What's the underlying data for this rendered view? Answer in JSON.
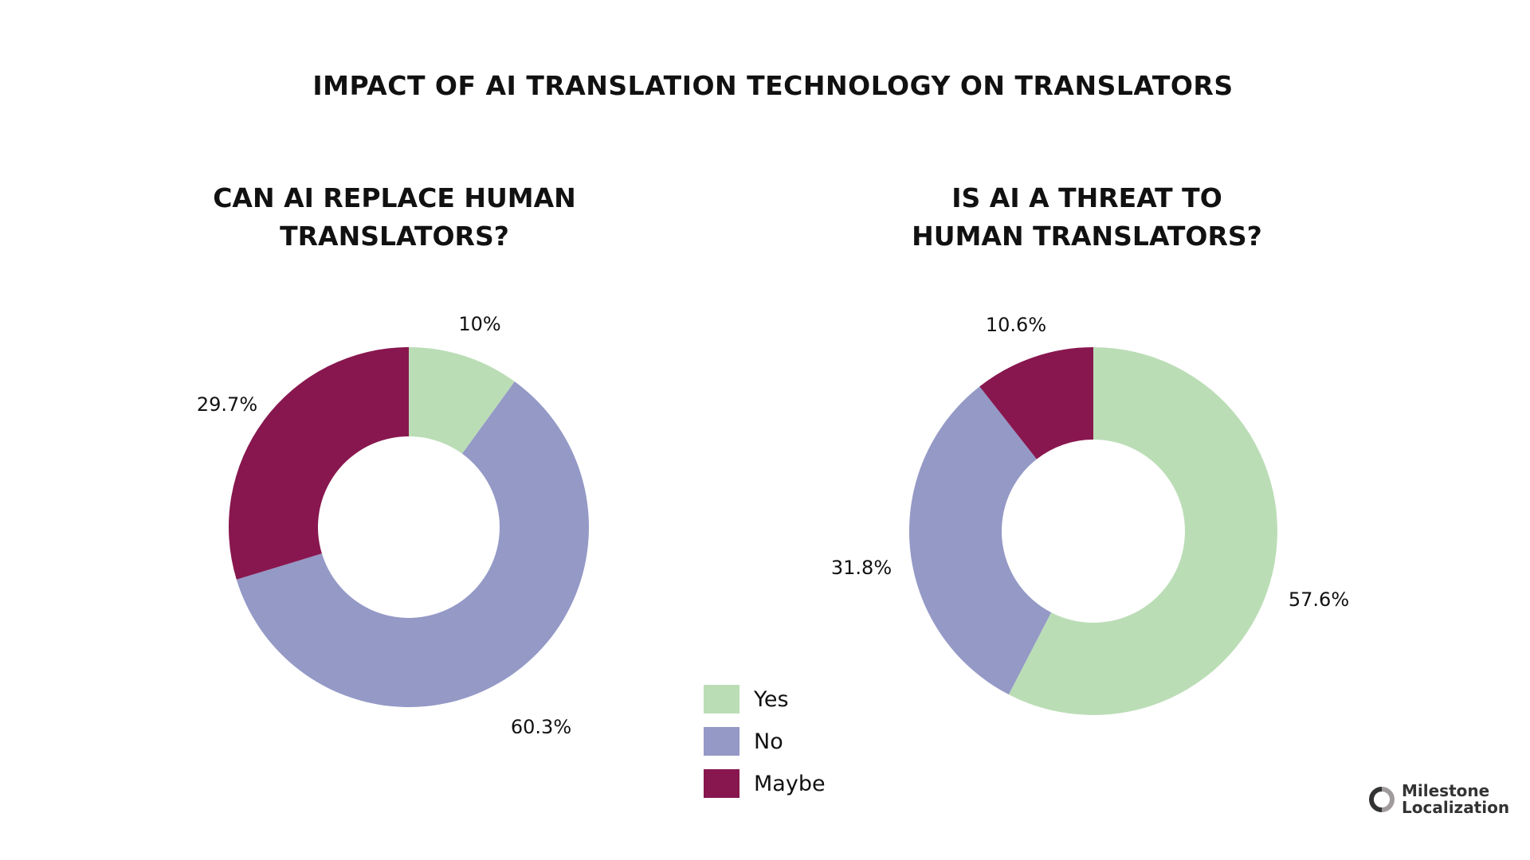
{
  "title": "IMPACT OF AI TRANSLATION TECHNOLOGY ON TRANSLATORS",
  "chart_data": [
    {
      "type": "pie",
      "donut": true,
      "title_lines": [
        "CAN AI REPLACE HUMAN",
        "TRANSLATORS?"
      ],
      "categories": [
        "Yes",
        "No",
        "Maybe"
      ],
      "values": [
        10,
        60.3,
        29.7
      ],
      "data_labels": [
        "10%",
        "60.3%",
        "29.7%"
      ],
      "colors": [
        "#bbddb6",
        "#9499c6",
        "#88174f"
      ]
    },
    {
      "type": "pie",
      "donut": true,
      "title_lines": [
        "IS AI A THREAT TO",
        "HUMAN TRANSLATORS?"
      ],
      "categories": [
        "Yes",
        "No",
        "Maybe"
      ],
      "values": [
        57.6,
        31.8,
        10.6
      ],
      "data_labels": [
        "57.6%",
        "31.8%",
        "10.6%"
      ],
      "colors": [
        "#bbddb6",
        "#9499c6",
        "#88174f"
      ]
    }
  ],
  "legend": {
    "placement": "bottom-center",
    "items": [
      {
        "label": "Yes",
        "color": "#bbddb6"
      },
      {
        "label": "No",
        "color": "#9499c6"
      },
      {
        "label": "Maybe",
        "color": "#88174f"
      }
    ]
  },
  "logo": {
    "line1": "Milestone",
    "line2": "Localization"
  }
}
